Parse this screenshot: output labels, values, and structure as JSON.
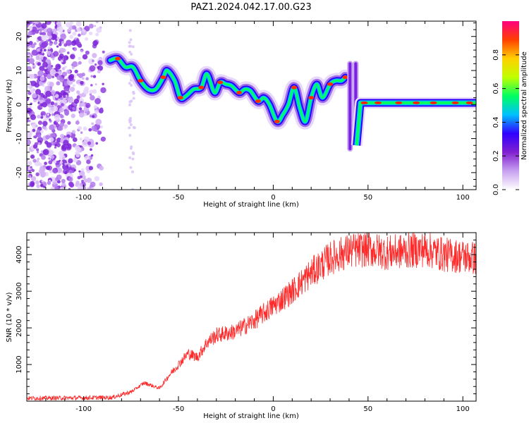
{
  "title": "PAZ1.2024.042.17.00.G23",
  "chart_data": [
    {
      "type": "heatmap",
      "xlabel": "Height of straight line (km)",
      "ylabel": "Frequency (Hz)",
      "xlim": [
        -130,
        107
      ],
      "ylim": [
        -25,
        24.5
      ],
      "x_ticks": [
        -100,
        -50,
        0,
        50,
        100
      ],
      "y_ticks": [
        -20,
        -10,
        0,
        10,
        20
      ],
      "colorbar": {
        "label": "Normalized spectral amplitude",
        "range": [
          0,
          1
        ],
        "ticks": [
          0.0,
          0.2,
          0.4,
          0.6,
          0.8
        ],
        "colormap": [
          "#ffffff",
          "#c8a0f0",
          "#8020d0",
          "#3000ff",
          "#00c0ff",
          "#00ff60",
          "#c0ff00",
          "#ffd000",
          "#ff4000",
          "#ff0080"
        ]
      },
      "noise_region_km": [
        -130,
        -74
      ],
      "ridge": {
        "x": [
          -86,
          -82,
          -78,
          -74,
          -70,
          -66,
          -62,
          -58,
          -56,
          -52,
          -49,
          -46,
          -42,
          -38,
          -35,
          -31,
          -28,
          -25,
          -22,
          -18,
          -15,
          -12,
          -8,
          -5,
          -2,
          2,
          5,
          8,
          11,
          14,
          17,
          20,
          23,
          26,
          30,
          33,
          36,
          38
        ],
        "y": [
          13,
          13.5,
          11,
          11,
          7,
          4.5,
          4.5,
          8,
          10,
          7,
          2,
          2.5,
          4.5,
          5,
          9,
          3.5,
          6.5,
          6,
          5.5,
          3.5,
          4.5,
          4,
          1,
          2,
          0,
          -5,
          -3,
          0,
          5,
          -1,
          -5,
          2,
          6,
          2,
          6,
          7,
          7,
          8
        ]
      },
      "flat_segment": {
        "x": [
          46,
          107
        ],
        "y": 0.5
      }
    },
    {
      "type": "line",
      "xlabel": "Height of straight line (km)",
      "ylabel": "SNR (10 * v/v)",
      "xlim": [
        -130,
        107
      ],
      "ylim": [
        0,
        4600
      ],
      "x_ticks": [
        -100,
        -50,
        0,
        50,
        100
      ],
      "y_ticks": [
        1000,
        2000,
        3000,
        4000
      ],
      "color": "#ff2a2a",
      "trend": {
        "x": [
          -130,
          -100,
          -85,
          -75,
          -68,
          -60,
          -55,
          -50,
          -45,
          -40,
          -35,
          -30,
          -20,
          -10,
          0,
          10,
          20,
          30,
          40,
          50,
          60,
          70,
          80,
          90,
          100,
          107
        ],
        "y": [
          80,
          90,
          100,
          250,
          500,
          350,
          700,
          1000,
          1300,
          1200,
          1600,
          1800,
          1900,
          2200,
          2600,
          3000,
          3500,
          3900,
          4100,
          4150,
          4050,
          4100,
          4150,
          4000,
          3950,
          3900
        ]
      }
    }
  ]
}
